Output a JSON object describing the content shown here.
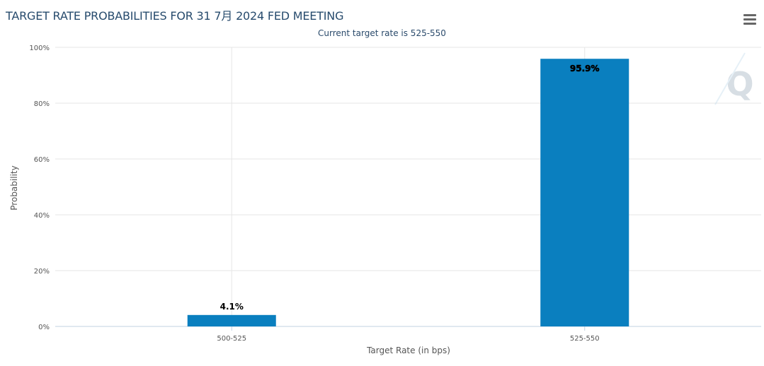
{
  "title": "TARGET RATE PROBABILITIES FOR 31 7月 2024 FED MEETING",
  "subtitle": "Current target rate is 525-550",
  "menu": {
    "icon": "hamburger-menu-icon"
  },
  "watermark": {
    "text": "Q"
  },
  "colors": {
    "bar": "#0a7fbf",
    "grid": "#e6e6e6",
    "title": "#274b6d"
  },
  "chart_data": {
    "type": "bar",
    "title": "TARGET RATE PROBABILITIES FOR 31 7月 2024 FED MEETING",
    "subtitle": "Current target rate is 525-550",
    "xlabel": "Target Rate (in bps)",
    "ylabel": "Probability",
    "categories": [
      "500-525",
      "525-550"
    ],
    "values": [
      4.1,
      95.9
    ],
    "data_labels": [
      "4.1%",
      "95.9%"
    ],
    "ylim": [
      0,
      100
    ],
    "yticks": [
      0,
      20,
      40,
      60,
      80,
      100
    ],
    "ytick_labels": [
      "0%",
      "20%",
      "40%",
      "60%",
      "80%",
      "100%"
    ],
    "grid": true
  }
}
